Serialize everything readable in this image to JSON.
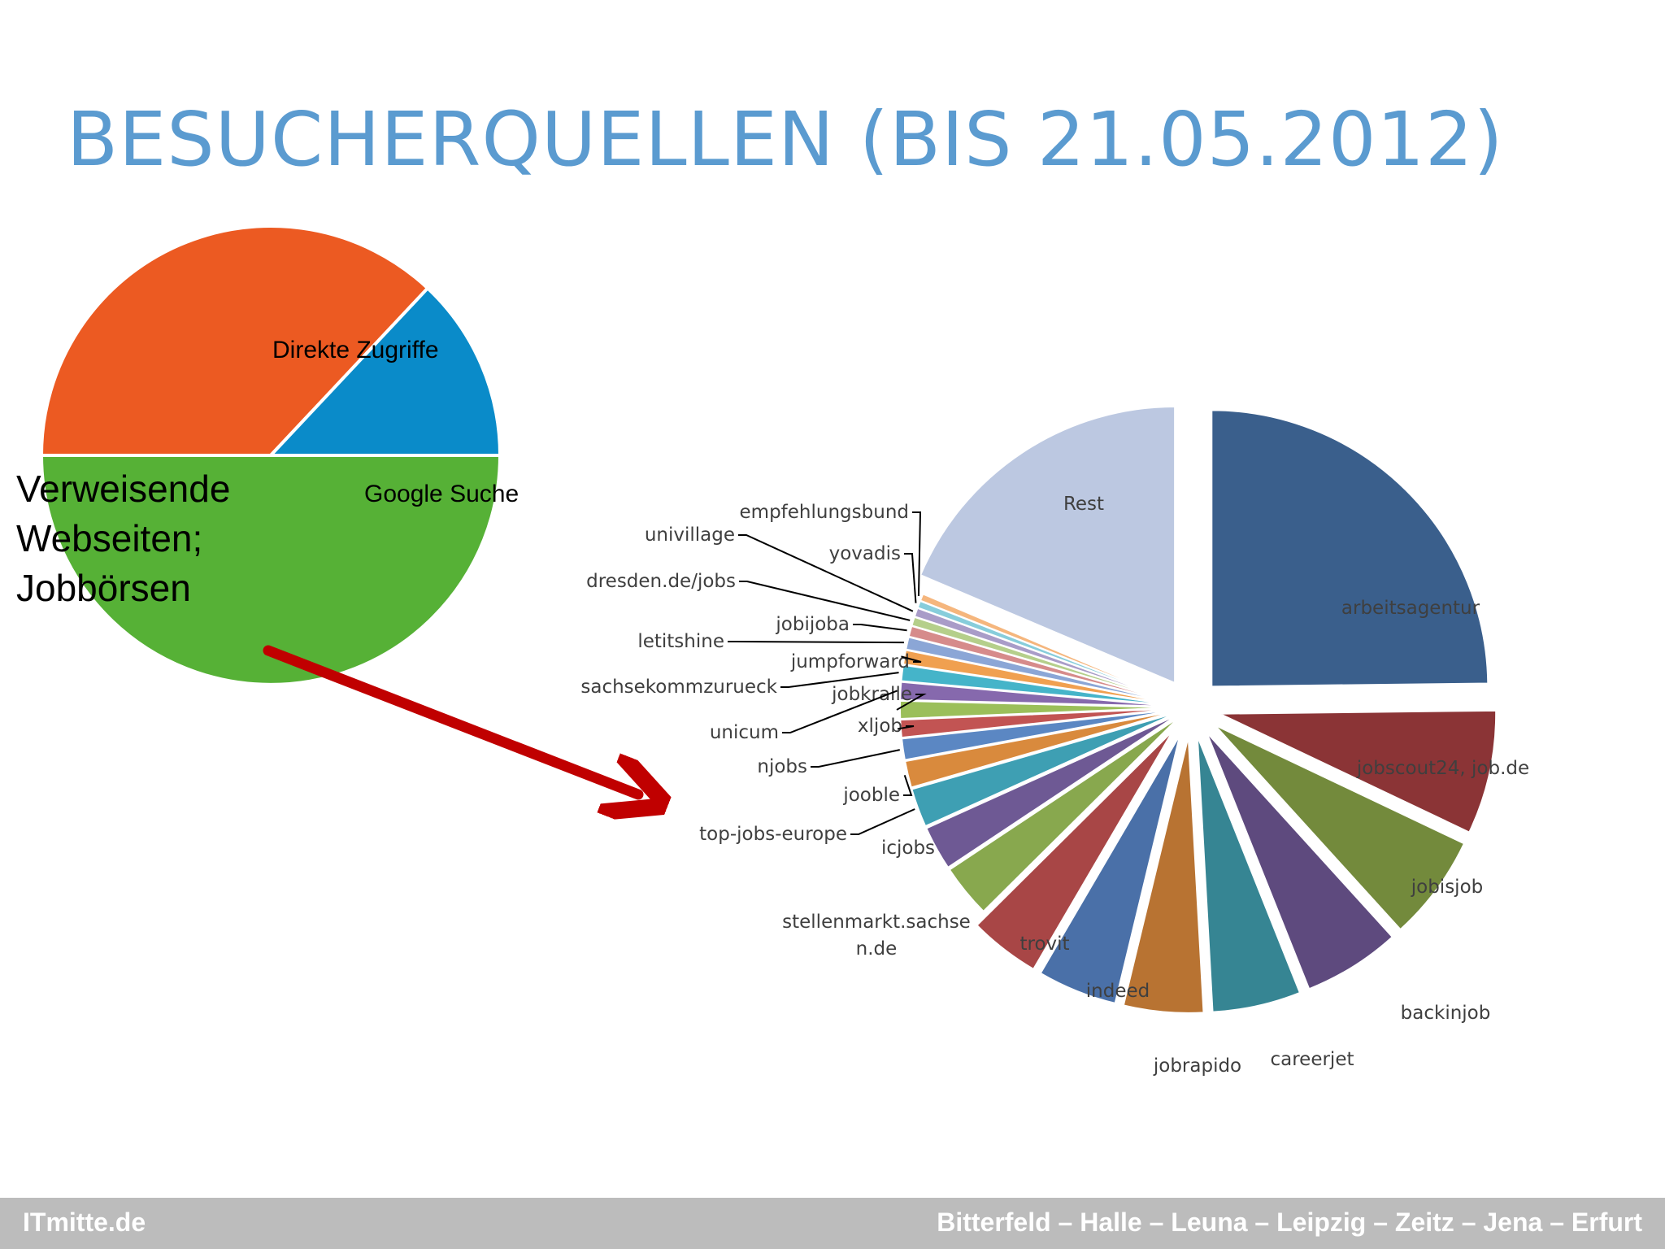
{
  "slide": {
    "title": "BESUCHERQUELLEN (BIS 21.05.2012)",
    "footer_left": "ITmitte.de",
    "footer_right": "Bitterfeld – Halle – Leuna – Leipzig – Zeitz – Jena – Erfurt"
  },
  "colors": {
    "title": "#5b9bd0",
    "arrow": "#c00000",
    "footer_bg": "#bcbcbc"
  },
  "chart_data": [
    {
      "type": "pie",
      "title": "",
      "labels_inside": true,
      "slices": [
        {
          "label": "Direkte Zugriffe",
          "value": 37,
          "color": "#ec5a22"
        },
        {
          "label": "Google Suche",
          "value": 13,
          "color": "#0a8bc9"
        },
        {
          "label": "Verweisende Webseiten; Jobbörsen",
          "value": 50,
          "color": "#56b136"
        }
      ]
    },
    {
      "type": "pie",
      "title": "",
      "exploded": true,
      "slices": [
        {
          "label": "arbeitsagentur",
          "value": 24.0,
          "color": "#3a5f8c"
        },
        {
          "label": "jobscout24, job.de",
          "value": 7.0,
          "color": "#8b3436"
        },
        {
          "label": "jobisjob",
          "value": 6.0,
          "color": "#738a3c"
        },
        {
          "label": "backinjob",
          "value": 5.5,
          "color": "#5e4a7e"
        },
        {
          "label": "careerjet",
          "value": 5.0,
          "color": "#368593"
        },
        {
          "label": "jobrapido",
          "value": 4.5,
          "color": "#b87332"
        },
        {
          "label": "indeed",
          "value": 4.5,
          "color": "#4a70a8"
        },
        {
          "label": "trovit",
          "value": 4.0,
          "color": "#a84646"
        },
        {
          "label": "stellenmarkt.sachsen.de",
          "value": 3.0,
          "color": "#88a84e"
        },
        {
          "label": "icjobs",
          "value": 2.5,
          "color": "#6e5994"
        },
        {
          "label": "top-jobs-europe",
          "value": 2.2,
          "color": "#3e9fb3"
        },
        {
          "label": "jooble",
          "value": 1.5,
          "color": "#d98a3d"
        },
        {
          "label": "njobs",
          "value": 1.2,
          "color": "#5b87c3"
        },
        {
          "label": "xljob",
          "value": 1.0,
          "color": "#c25453"
        },
        {
          "label": "jobkralle",
          "value": 1.0,
          "color": "#9bbf5a"
        },
        {
          "label": "unicum",
          "value": 1.0,
          "color": "#8669ad"
        },
        {
          "label": "sachsekommzurueck",
          "value": 0.9,
          "color": "#45b4c9"
        },
        {
          "label": "jumpforward",
          "value": 0.8,
          "color": "#f0a050"
        },
        {
          "label": "letitshine",
          "value": 0.7,
          "color": "#8ba6d6"
        },
        {
          "label": "jobijoba",
          "value": 0.6,
          "color": "#d68b8b"
        },
        {
          "label": "dresden.de/jobs",
          "value": 0.5,
          "color": "#b5cf8b"
        },
        {
          "label": "univillage",
          "value": 0.5,
          "color": "#a99cc8"
        },
        {
          "label": "yovadis",
          "value": 0.4,
          "color": "#87cddb"
        },
        {
          "label": "empfehlungsbund",
          "value": 0.4,
          "color": "#f5b67d"
        },
        {
          "label": "Rest",
          "value": 18.0,
          "color": "#bcc8e1"
        }
      ]
    }
  ]
}
